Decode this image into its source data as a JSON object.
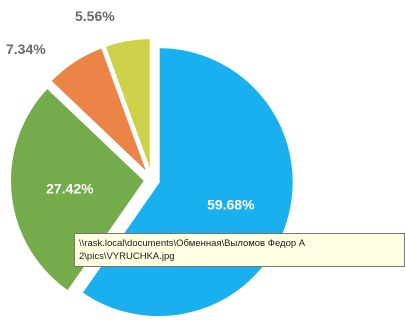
{
  "chart_data": {
    "type": "pie",
    "slices": [
      {
        "value": 59.68,
        "label": "59.68%",
        "color": "#1ab0f0",
        "label_color": "#ffffff"
      },
      {
        "value": 27.42,
        "label": "27.42%",
        "color": "#75ac4b",
        "label_color": "#ffffff"
      },
      {
        "value": 7.34,
        "label": "7.34%",
        "color": "#ec8448",
        "label_color": "#6a6a6a"
      },
      {
        "value": 5.56,
        "label": "5.56%",
        "color": "#cdd24a",
        "label_color": "#6a6a6a"
      }
    ],
    "start_angle_deg": 0,
    "direction": "clockwise",
    "exploded": true
  },
  "tooltip": {
    "line1": "\\\\rask.local\\documents\\Обменная\\Выломов Федор А",
    "line2": "2\\pics\\VYRUCHKA.jpg"
  }
}
